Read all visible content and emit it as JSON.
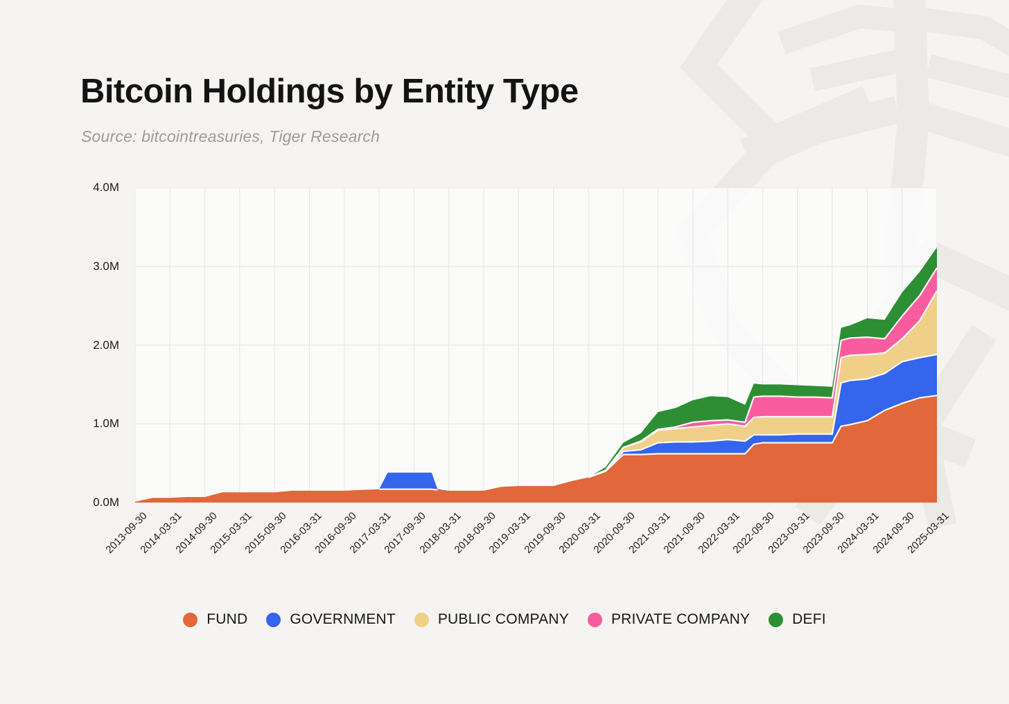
{
  "header": {
    "title": "Bitcoin Holdings by Entity Type",
    "source": "Source: bitcointreasuries, Tiger Research"
  },
  "chart_data": {
    "type": "area",
    "stacked": true,
    "title": "Bitcoin Holdings by Entity Type",
    "unit": "M BTC",
    "grid": true,
    "legend_position": "bottom",
    "ylim": [
      0,
      4.0
    ],
    "y_ticks": [
      {
        "label": "0.0M",
        "value": 0
      },
      {
        "label": "1.0M",
        "value": 1
      },
      {
        "label": "2.0M",
        "value": 2
      },
      {
        "label": "3.0M",
        "value": 3
      },
      {
        "label": "4.0M",
        "value": 4
      }
    ],
    "x_tick_labels": [
      "2013-09-30",
      "2014-03-31",
      "2014-09-30",
      "2015-03-31",
      "2015-09-30",
      "2016-03-31",
      "2016-09-30",
      "2017-03-31",
      "2017-09-30",
      "2018-03-31",
      "2018-09-30",
      "2019-03-31",
      "2019-09-30",
      "2020-03-31",
      "2020-09-30",
      "2021-03-31",
      "2021-09-30",
      "2022-03-31",
      "2022-09-30",
      "2023-03-31",
      "2023-09-30",
      "2024-03-31",
      "2024-09-30",
      "2025-03-31"
    ],
    "x": [
      "2013-09-30",
      "2013-12-31",
      "2014-03-31",
      "2014-06-30",
      "2014-09-30",
      "2014-12-31",
      "2015-03-31",
      "2015-06-30",
      "2015-09-30",
      "2015-12-31",
      "2016-03-31",
      "2016-06-30",
      "2016-09-30",
      "2016-12-31",
      "2017-03-31",
      "2017-05-15",
      "2017-06-30",
      "2017-09-30",
      "2017-12-31",
      "2018-01-31",
      "2018-03-31",
      "2018-06-30",
      "2018-09-30",
      "2018-12-31",
      "2019-03-31",
      "2019-06-30",
      "2019-09-30",
      "2019-12-31",
      "2020-03-31",
      "2020-06-30",
      "2020-09-30",
      "2020-12-31",
      "2021-03-31",
      "2021-06-30",
      "2021-09-30",
      "2021-12-31",
      "2022-03-31",
      "2022-06-30",
      "2022-08-15",
      "2022-09-30",
      "2022-12-31",
      "2023-03-31",
      "2023-06-30",
      "2023-09-30",
      "2023-11-15",
      "2023-12-31",
      "2024-03-31",
      "2024-06-30",
      "2024-09-30",
      "2024-12-31",
      "2025-03-31"
    ],
    "series": [
      {
        "name": "FUND",
        "color": "#e2673b",
        "values": [
          0.01,
          0.06,
          0.06,
          0.07,
          0.07,
          0.13,
          0.13,
          0.13,
          0.13,
          0.15,
          0.15,
          0.15,
          0.15,
          0.16,
          0.17,
          0.17,
          0.17,
          0.17,
          0.17,
          0.16,
          0.15,
          0.15,
          0.15,
          0.2,
          0.21,
          0.21,
          0.21,
          0.27,
          0.32,
          0.4,
          0.61,
          0.61,
          0.62,
          0.62,
          0.62,
          0.62,
          0.62,
          0.62,
          0.74,
          0.76,
          0.76,
          0.76,
          0.76,
          0.76,
          0.97,
          0.99,
          1.04,
          1.17,
          1.26,
          1.33,
          1.36
        ]
      },
      {
        "name": "GOVERNMENT",
        "color": "#3565ec",
        "values": [
          0,
          0,
          0,
          0,
          0,
          0,
          0,
          0,
          0,
          0,
          0,
          0,
          0,
          0,
          0,
          0.21,
          0.21,
          0.21,
          0.21,
          0.01,
          0,
          0,
          0,
          0,
          0,
          0,
          0,
          0,
          0,
          0,
          0.04,
          0.06,
          0.14,
          0.15,
          0.15,
          0.16,
          0.18,
          0.16,
          0.12,
          0.1,
          0.1,
          0.11,
          0.11,
          0.11,
          0.55,
          0.56,
          0.53,
          0.47,
          0.53,
          0.51,
          0.52
        ]
      },
      {
        "name": "PUBLIC COMPANY",
        "color": "#f0cf88",
        "values": [
          0,
          0,
          0,
          0,
          0,
          0,
          0,
          0,
          0,
          0,
          0,
          0,
          0,
          0,
          0,
          0,
          0,
          0,
          0,
          0,
          0,
          0,
          0,
          0,
          0,
          0,
          0,
          0,
          0,
          0.01,
          0.05,
          0.1,
          0.16,
          0.17,
          0.19,
          0.2,
          0.2,
          0.19,
          0.22,
          0.23,
          0.23,
          0.22,
          0.22,
          0.22,
          0.32,
          0.32,
          0.31,
          0.26,
          0.29,
          0.47,
          0.81
        ]
      },
      {
        "name": "PRIVATE COMPANY",
        "color": "#f85c9e",
        "values": [
          0,
          0,
          0,
          0,
          0,
          0,
          0,
          0,
          0,
          0,
          0,
          0,
          0,
          0,
          0,
          0,
          0,
          0,
          0,
          0,
          0,
          0,
          0,
          0,
          0,
          0,
          0,
          0,
          0,
          0,
          0,
          0.01,
          0.01,
          0.02,
          0.06,
          0.06,
          0.05,
          0.05,
          0.26,
          0.26,
          0.26,
          0.25,
          0.25,
          0.24,
          0.22,
          0.22,
          0.22,
          0.18,
          0.29,
          0.32,
          0.29
        ]
      },
      {
        "name": "DEFI",
        "color": "#2e8e34",
        "values": [
          0,
          0,
          0,
          0,
          0,
          0,
          0,
          0,
          0,
          0,
          0,
          0,
          0,
          0,
          0,
          0,
          0,
          0,
          0,
          0,
          0,
          0,
          0,
          0,
          0,
          0,
          0,
          0,
          0,
          0.04,
          0.06,
          0.1,
          0.22,
          0.24,
          0.28,
          0.31,
          0.29,
          0.22,
          0.17,
          0.15,
          0.15,
          0.15,
          0.14,
          0.14,
          0.16,
          0.16,
          0.24,
          0.24,
          0.3,
          0.3,
          0.26
        ]
      }
    ]
  },
  "style": {
    "page_bg": "#f5f4f2",
    "plot_bg": "#fbfbfa",
    "gridline": "#e9e8e6",
    "separator": "#ffffff",
    "watermark": "#ebeae7"
  }
}
